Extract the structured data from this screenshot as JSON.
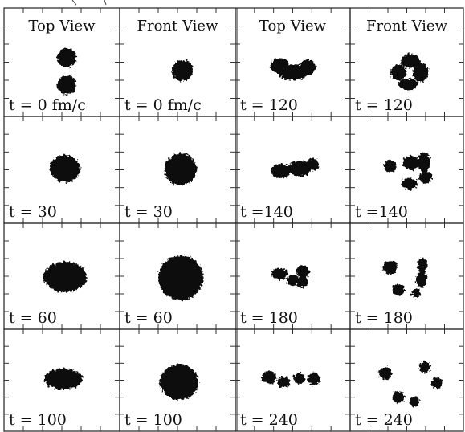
{
  "columns": [
    "Top View",
    "Front View",
    "Top View",
    "Front View"
  ],
  "panels": [
    [
      "t = 0 fm/c",
      "t = 0 fm/c",
      "t = 120",
      "t = 120"
    ],
    [
      "t = 30",
      "t = 30",
      "t =140",
      "t =140"
    ],
    [
      "t = 60",
      "t = 60",
      "t = 180",
      "t = 180"
    ],
    [
      "t = 100",
      "t = 100",
      "t = 240",
      "t = 240"
    ]
  ]
}
